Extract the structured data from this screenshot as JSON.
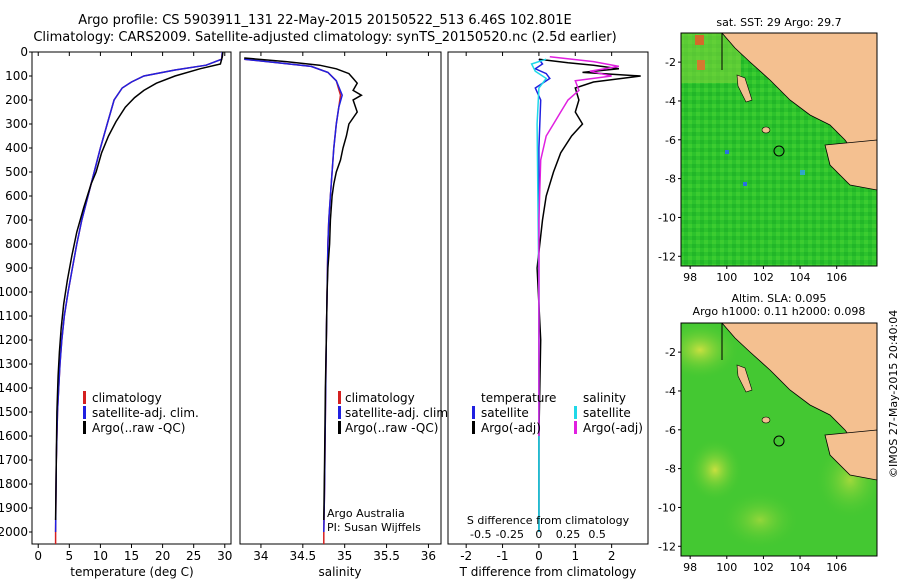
{
  "header": {
    "line1": "Argo profile: CS 5903911_131 22-May-2015 20150522_513 6.46S 102.801E",
    "line2": "Climatology: CARS2009. Satellite-adjusted climatology: synTS_20150520.nc (2.5d earlier)"
  },
  "colors": {
    "climatology": "#d42020",
    "satellite": "#2020e0",
    "argo": "#000000",
    "salinity_sat": "#20d8e8",
    "salinity_argo": "#e020e0",
    "land": "#f4c090",
    "sea": "#1ec01e"
  },
  "panels": {
    "temperature": {
      "xlabel": "temperature (deg C)",
      "legend": [
        "climatology",
        "satellite-adj. clim.",
        "Argo(..raw -QC)"
      ]
    },
    "salinity": {
      "xlabel": "salinity",
      "legend": [
        "climatology",
        "satellite-adj. clim.",
        "Argo(..raw -QC)"
      ],
      "note1": "Argo Australia",
      "note2": "PI: Susan Wijffels"
    },
    "difference": {
      "xlabel_top": "S difference from climatology",
      "xlabel_bottom": "T difference from climatology",
      "legend_temp_title": "temperature",
      "legend_sal_title": "salinity",
      "legend_sat": "satellite",
      "legend_argo": "Argo(-adj)"
    }
  },
  "maps": {
    "sst": {
      "title": "sat. SST: 29 Argo: 29.7"
    },
    "sla": {
      "title1": "Altim. SLA: 0.095",
      "title2": "Argo h1000: 0.11 h2000: 0.098"
    },
    "xticks": [
      "98",
      "100",
      "102",
      "104",
      "106"
    ],
    "yticks": [
      "-2",
      "-4",
      "-6",
      "-8",
      "-10",
      "-12"
    ]
  },
  "credit": "©IMOS 27-May-2015 20:40:04",
  "chart_data": [
    {
      "type": "line",
      "xlabel": "temperature (deg C)",
      "xlim": [
        -1,
        31
      ],
      "ylim": [
        0,
        2050
      ],
      "xticks": [
        0,
        5,
        10,
        15,
        20,
        25,
        30
      ],
      "yticks": [
        0,
        100,
        200,
        300,
        400,
        500,
        600,
        700,
        800,
        900,
        1000,
        1100,
        1200,
        1300,
        1400,
        1500,
        1600,
        1700,
        1800,
        1900,
        2000
      ],
      "series": [
        {
          "name": "climatology",
          "color": "#d42020",
          "x": [
            29.6,
            29.5,
            27,
            22,
            17,
            15,
            13.5,
            12.2,
            11.1,
            10,
            9,
            8,
            7,
            6.2,
            5.5,
            4.8,
            4.2,
            3.8,
            3.5,
            3.3,
            3.1,
            2.9,
            2.8,
            2.8
          ],
          "y": [
            0,
            30,
            55,
            75,
            100,
            125,
            150,
            200,
            300,
            400,
            500,
            600,
            700,
            800,
            900,
            1000,
            1100,
            1200,
            1300,
            1400,
            1500,
            1700,
            2000,
            2050
          ]
        },
        {
          "name": "satellite-adj. clim.",
          "color": "#2020e0",
          "x": [
            29.6,
            29.5,
            27,
            22,
            17,
            15,
            13.5,
            12.2,
            11.1,
            10,
            9,
            8,
            7,
            6.2,
            5.5,
            4.8,
            4.2,
            3.8,
            3.5,
            3.3,
            3.1,
            2.9,
            2.8
          ],
          "y": [
            0,
            30,
            55,
            75,
            100,
            125,
            150,
            200,
            300,
            400,
            500,
            600,
            700,
            800,
            900,
            1000,
            1100,
            1200,
            1300,
            1400,
            1500,
            1700,
            2000
          ]
        },
        {
          "name": "Argo(..raw -QC)",
          "color": "#000000",
          "x": [
            29.7,
            29.6,
            29.3,
            26,
            22,
            19,
            17,
            15.5,
            14,
            12.5,
            11.3,
            10.2,
            9.3,
            8.5,
            7.3,
            6.2,
            5.4,
            4.7,
            4.1,
            3.7,
            3.4,
            3.2,
            3,
            2.9,
            2.8
          ],
          "y": [
            0,
            20,
            50,
            70,
            100,
            130,
            160,
            190,
            230,
            290,
            350,
            420,
            500,
            550,
            650,
            750,
            850,
            950,
            1050,
            1150,
            1250,
            1350,
            1500,
            1700,
            1950
          ]
        }
      ]
    },
    {
      "type": "line",
      "xlabel": "salinity",
      "xlim": [
        33.75,
        36.15
      ],
      "ylim": [
        0,
        2050
      ],
      "xticks": [
        34,
        34.5,
        35,
        35.5,
        36
      ],
      "yticks": [
        0,
        100,
        200,
        300,
        400,
        500,
        600,
        700,
        800,
        900,
        1000,
        1100,
        1200,
        1300,
        1400,
        1500,
        1600,
        1700,
        1800,
        1900,
        2000
      ],
      "series": [
        {
          "name": "climatology",
          "color": "#d42020",
          "x": [
            33.8,
            34.2,
            34.6,
            34.8,
            34.9,
            34.95,
            34.93,
            34.9,
            34.87,
            34.85,
            34.83,
            34.81,
            34.8,
            34.79,
            34.78,
            34.77,
            34.76,
            34.75,
            34.75
          ],
          "y": [
            30,
            45,
            60,
            85,
            120,
            180,
            230,
            300,
            400,
            500,
            600,
            700,
            800,
            1000,
            1200,
            1500,
            1800,
            2000,
            2050
          ]
        },
        {
          "name": "satellite-adj. clim.",
          "color": "#2020e0",
          "x": [
            33.8,
            34.2,
            34.6,
            34.8,
            34.9,
            34.97,
            34.93,
            34.9,
            34.87,
            34.85,
            34.83,
            34.81,
            34.8,
            34.79,
            34.78,
            34.77,
            34.76,
            34.75
          ],
          "y": [
            30,
            45,
            60,
            85,
            120,
            180,
            230,
            300,
            400,
            500,
            600,
            700,
            800,
            1000,
            1200,
            1500,
            1800,
            2000
          ]
        },
        {
          "name": "Argo(..raw -QC)",
          "color": "#000000",
          "x": [
            33.8,
            34.3,
            34.7,
            34.9,
            35.05,
            35.1,
            35.15,
            35.1,
            35.2,
            35.1,
            35.15,
            35.05,
            35.02,
            34.98,
            34.95,
            34.9,
            34.87,
            34.85,
            34.83,
            34.82,
            34.8,
            34.79,
            34.78,
            34.77,
            34.76,
            34.75
          ],
          "y": [
            25,
            40,
            55,
            70,
            90,
            110,
            130,
            160,
            180,
            200,
            250,
            300,
            350,
            400,
            450,
            500,
            550,
            600,
            700,
            800,
            900,
            1000,
            1200,
            1400,
            1700,
            1950
          ]
        }
      ]
    },
    {
      "type": "line",
      "xlabel_bottom": "T difference from climatology",
      "xlabel_top": "S difference from climatology",
      "xlim": [
        -2.5,
        3
      ],
      "ylim": [
        0,
        2050
      ],
      "xticks_bottom": [
        -2,
        -1,
        0,
        1,
        2
      ],
      "xticks_top_labels": [
        "-0.5",
        "-0.25",
        "0",
        "0.25",
        "0.5"
      ],
      "series": [
        {
          "name": "temperature satellite",
          "color": "#2020e0",
          "x": [
            0,
            0.1,
            -0.1,
            0.2,
            0.3,
            -0.1,
            0.05,
            0,
            0,
            0
          ],
          "y": [
            30,
            50,
            70,
            90,
            110,
            150,
            200,
            400,
            1000,
            2000
          ]
        },
        {
          "name": "temperature Argo(-adj)",
          "color": "#000000",
          "x": [
            0,
            0.8,
            1.5,
            2.2,
            1.2,
            2.8,
            1.5,
            1.0,
            1.1,
            1.0,
            1.2,
            0.9,
            0.6,
            0.4,
            0.2,
            0.1,
            -0.05,
            0.05,
            0,
            0
          ],
          "y": [
            30,
            45,
            55,
            70,
            85,
            100,
            125,
            150,
            200,
            250,
            300,
            350,
            420,
            500,
            600,
            700,
            900,
            1200,
            1600,
            2000
          ]
        },
        {
          "name": "salinity satellite",
          "color": "#20d8e8",
          "x": [
            0.2,
            -0.2,
            -0.1,
            0.2,
            0,
            -0.05,
            0,
            0
          ],
          "y": [
            30,
            50,
            80,
            110,
            150,
            300,
            1000,
            2000
          ]
        },
        {
          "name": "salinity Argo(-adj)",
          "color": "#e020e0",
          "x": [
            0.3,
            1.5,
            2.2,
            1.4,
            2.0,
            1.0,
            1.1,
            0.8,
            0.6,
            0.4,
            0.2,
            0.05,
            0,
            0
          ],
          "y": [
            20,
            40,
            60,
            80,
            100,
            120,
            160,
            200,
            250,
            300,
            350,
            450,
            700,
            1600
          ]
        }
      ]
    }
  ]
}
